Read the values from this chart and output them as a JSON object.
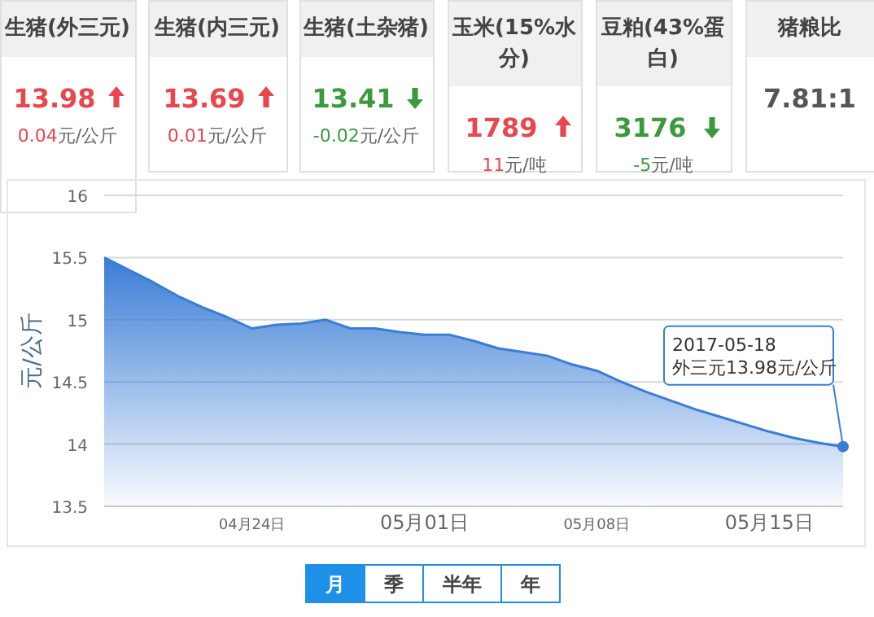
{
  "chart_data": [
    {
      "type": "other",
      "categories": [
        "生猪(外三元)",
        "生猪(内三元)",
        "生猪(土杂猪)",
        "玉米(15%水分)",
        "豆粕(43%蛋白)",
        "猪粮比"
      ],
      "value_labels": [
        "13.98",
        "13.69",
        "13.41",
        "1789",
        "3176",
        "7.81:1"
      ],
      "annotations": [
        "0.04元/公斤",
        "0.01元/公斤",
        "-0.02元/公斤",
        "11元/吨",
        "-5元/吨"
      ]
    },
    {
      "type": "area",
      "ylabel": "元/公斤",
      "x": [
        "2017-04-18",
        "2017-04-19",
        "2017-04-20",
        "2017-04-21",
        "2017-04-22",
        "2017-04-23",
        "2017-04-24",
        "2017-04-25",
        "2017-04-26",
        "2017-04-27",
        "2017-04-28",
        "2017-04-29",
        "2017-04-30",
        "2017-05-01",
        "2017-05-02",
        "2017-05-03",
        "2017-05-04",
        "2017-05-05",
        "2017-05-06",
        "2017-05-07",
        "2017-05-08",
        "2017-05-09",
        "2017-05-10",
        "2017-05-11",
        "2017-05-12",
        "2017-05-13",
        "2017-05-14",
        "2017-05-15",
        "2017-05-16",
        "2017-05-17",
        "2017-05-18"
      ],
      "series": [
        {
          "color": "#3a7dd6",
          "values": [
            15.5,
            15.4,
            15.3,
            15.19,
            15.1,
            15.02,
            14.93,
            14.96,
            14.97,
            15.0,
            14.93,
            14.93,
            14.9,
            14.88,
            14.88,
            14.83,
            14.77,
            14.74,
            14.71,
            14.64,
            14.59,
            14.5,
            14.42,
            14.35,
            14.28,
            14.22,
            14.16,
            14.1,
            14.05,
            14.01,
            13.98
          ]
        }
      ],
      "xlim": [
        "2017-04-18",
        "2017-05-18"
      ],
      "xticks": [
        {
          "value": "2017-04-24",
          "label": "04月24日"
        },
        {
          "value": "2017-05-01",
          "label": "05月01日"
        },
        {
          "value": "2017-05-08",
          "label": "05月08日"
        },
        {
          "value": "2017-05-15",
          "label": "05月15日"
        }
      ],
      "ylim": [
        13.5,
        16
      ],
      "yticks": [
        13.5,
        14,
        14.5,
        15,
        15.5,
        16
      ],
      "grid": "y",
      "marker": "none",
      "annotations": [
        "月",
        "季",
        "半年",
        "年",
        {
          "text": "2017-05-18\n外三元13.98元/公斤",
          "x": "2017-05-18",
          "y": 13.98
        }
      ]
    }
  ]
}
